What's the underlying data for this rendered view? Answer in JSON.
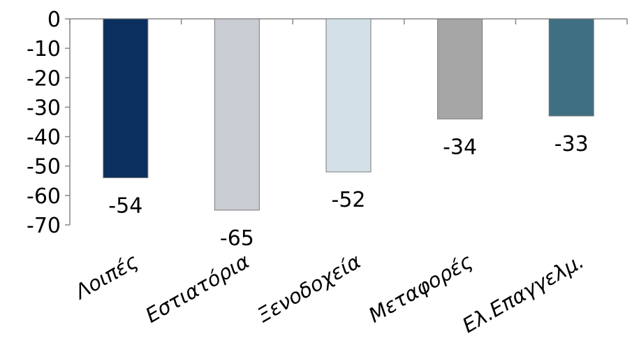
{
  "chart_data": {
    "type": "bar",
    "categories": [
      "Λοιπές",
      "Εστιατόρια",
      "Ξενοδοχεία",
      "Μεταφορές",
      "Ελ.Επαγγελμ."
    ],
    "values": [
      -54,
      -65,
      -52,
      -34,
      -33
    ],
    "value_labels": [
      "-54",
      "-65",
      "-52",
      "-34",
      "-33"
    ],
    "colors": [
      "#0b2f5e",
      "#c9ccd2",
      "#d3e0e8",
      "#a6a6a6",
      "#3f6f82"
    ],
    "ylim": [
      -70,
      0
    ],
    "y_ticks": [
      0,
      -10,
      -20,
      -30,
      -40,
      -50,
      -60,
      -70
    ],
    "y_tick_labels": [
      "0",
      "-10",
      "-20",
      "-30",
      "-40",
      "-50",
      "-60",
      "-70"
    ],
    "title": "",
    "xlabel": "",
    "ylabel": "",
    "grid": false,
    "legend": "none"
  }
}
